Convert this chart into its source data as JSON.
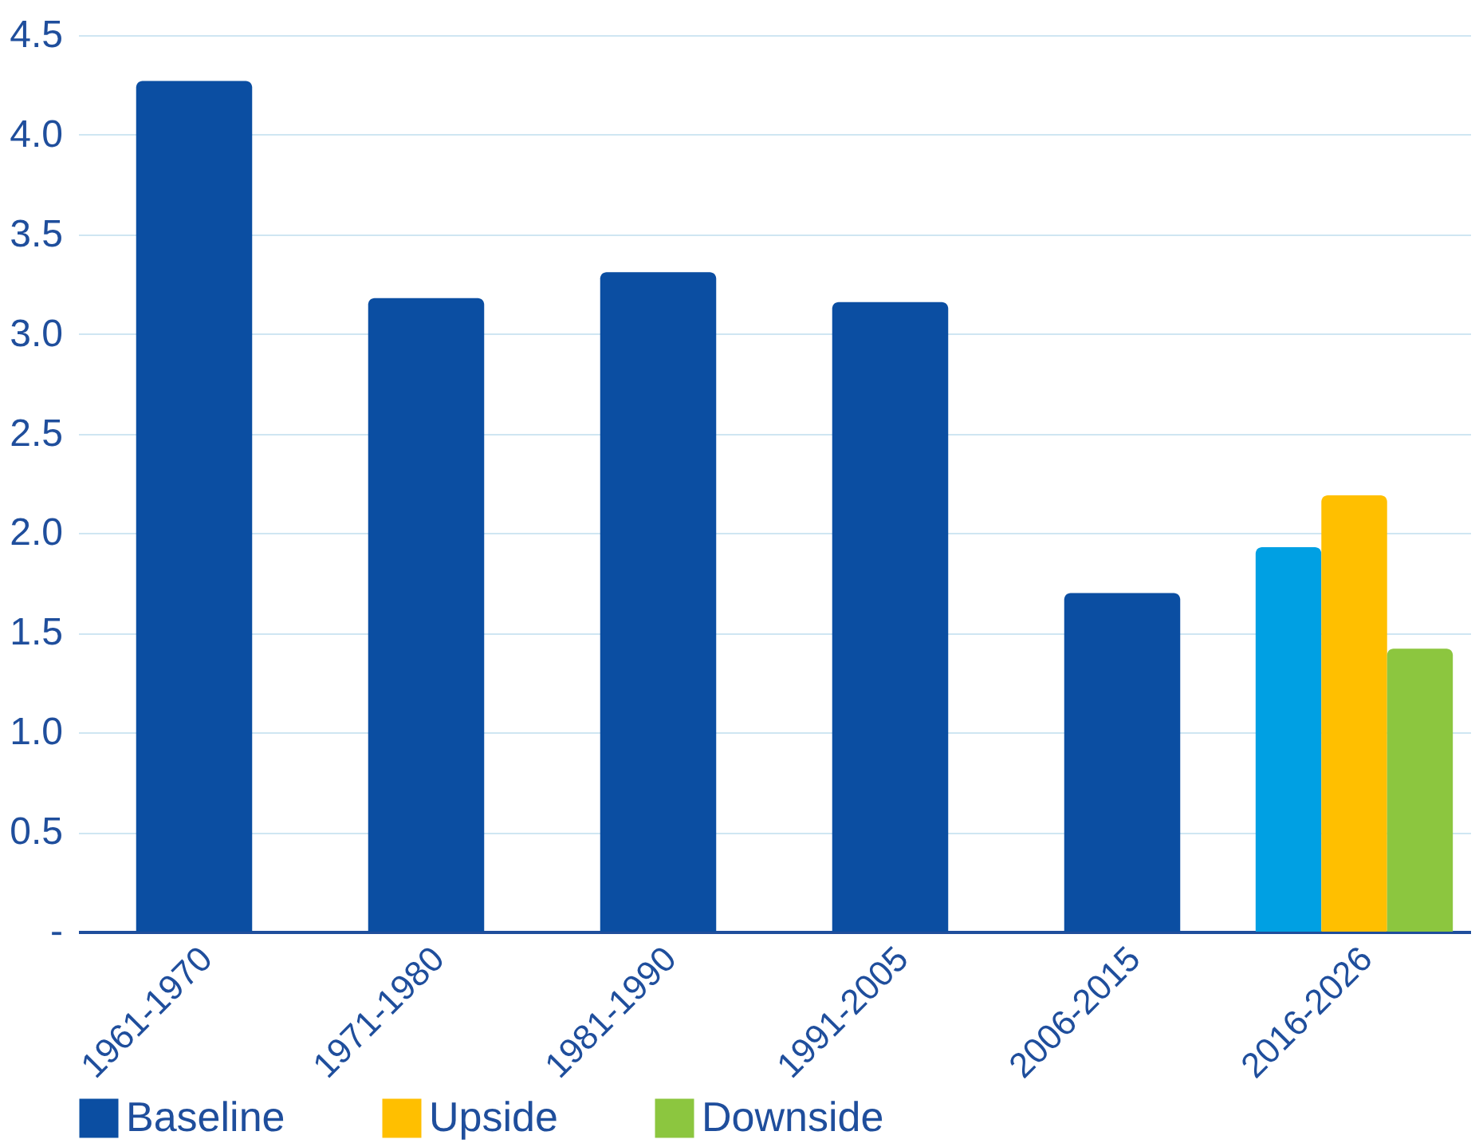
{
  "chart_data": {
    "type": "bar",
    "categories": [
      "1961-1970",
      "1971-1980",
      "1981-1990",
      "1991-2005",
      "2006-2015",
      "2016-2026"
    ],
    "series": [
      {
        "name": "Baseline",
        "color": "#0b4ea2",
        "colors": [
          "#0b4ea2",
          "#0b4ea2",
          "#0b4ea2",
          "#0b4ea2",
          "#0b4ea2",
          "#00a0e3"
        ],
        "values": [
          4.27,
          3.18,
          3.31,
          3.16,
          1.7,
          1.93
        ]
      },
      {
        "name": "Upside",
        "color": "#ffbf00",
        "values": [
          null,
          null,
          null,
          null,
          null,
          2.19
        ]
      },
      {
        "name": "Downside",
        "color": "#8cc63f",
        "values": [
          null,
          null,
          null,
          null,
          null,
          1.42
        ]
      }
    ],
    "ylim": [
      0,
      4.5
    ],
    "yticks": [
      {
        "value": 0,
        "label": "-"
      },
      0.5,
      {
        "value": 1,
        "label": "1.0"
      },
      1.5,
      {
        "value": 2,
        "label": "2.0"
      },
      2.5,
      {
        "value": 3,
        "label": "3.0"
      },
      3.5,
      {
        "value": 4,
        "label": "4.0"
      },
      4.5
    ],
    "grid": "y",
    "legend": "bottom"
  }
}
